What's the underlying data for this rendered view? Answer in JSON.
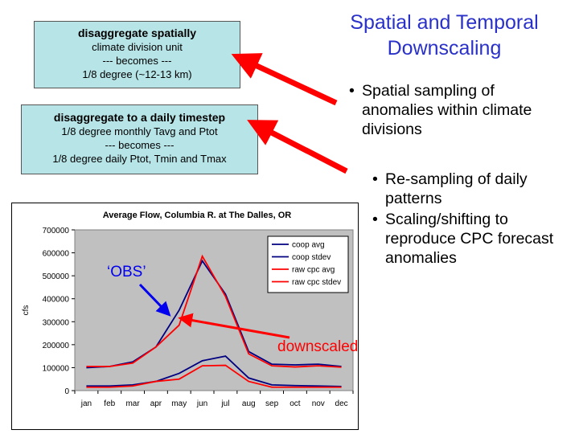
{
  "slide": {
    "title": "Spatial and Temporal Downscaling",
    "box1": {
      "heading": "disaggregate spatially",
      "lines": [
        "climate division unit",
        "--- becomes ---",
        "1/8 degree (~12-13 km)"
      ]
    },
    "box2": {
      "heading": "disaggregate to a daily timestep",
      "lines": [
        "1/8 degree monthly Tavg and Ptot",
        "--- becomes ---",
        "1/8 degree daily Ptot, Tmin and Tmax"
      ]
    },
    "bullets_top": [
      "Spatial sampling of anomalies within climate divisions"
    ],
    "bullets_bottom": [
      "Re-sampling of daily patterns",
      "Scaling/shifting to reproduce CPC forecast anomalies"
    ],
    "annotation_obs": "‘OBS’",
    "annotation_downscaled": "downscaled",
    "colors": {
      "title": "#2a31c8",
      "arrow": "#ff0000",
      "box": "#b7e4e7",
      "obs_annotation": "#0000ee"
    }
  },
  "chart_data": {
    "type": "line",
    "title": "Average Flow, Columbia R. at The Dalles, OR",
    "xlabel": "",
    "ylabel": "cfs",
    "categories": [
      "jan",
      "feb",
      "mar",
      "apr",
      "may",
      "jun",
      "jul",
      "aug",
      "sep",
      "oct",
      "nov",
      "dec"
    ],
    "ylim": [
      0,
      700000
    ],
    "yticks": [
      "0",
      "100000",
      "200000",
      "300000",
      "400000",
      "500000",
      "600000",
      "700000"
    ],
    "background": "#c0c0c0",
    "legend_position": "top-right",
    "series": [
      {
        "name": "coop avg",
        "color": "#000080",
        "values": [
          100000,
          105000,
          125000,
          190000,
          350000,
          565000,
          420000,
          170000,
          115000,
          112000,
          115000,
          105000
        ]
      },
      {
        "name": "coop stdev",
        "color": "#000080",
        "values": [
          20000,
          20000,
          25000,
          40000,
          75000,
          130000,
          150000,
          55000,
          25000,
          22000,
          20000,
          18000
        ]
      },
      {
        "name": "raw cpc avg",
        "color": "#ff0000",
        "values": [
          105000,
          105000,
          120000,
          190000,
          285000,
          585000,
          410000,
          160000,
          108000,
          103000,
          108000,
          102000
        ]
      },
      {
        "name": "raw cpc stdev",
        "color": "#ff0000",
        "values": [
          15000,
          15000,
          20000,
          40000,
          50000,
          108000,
          110000,
          40000,
          15000,
          15000,
          15000,
          15000
        ]
      }
    ]
  }
}
